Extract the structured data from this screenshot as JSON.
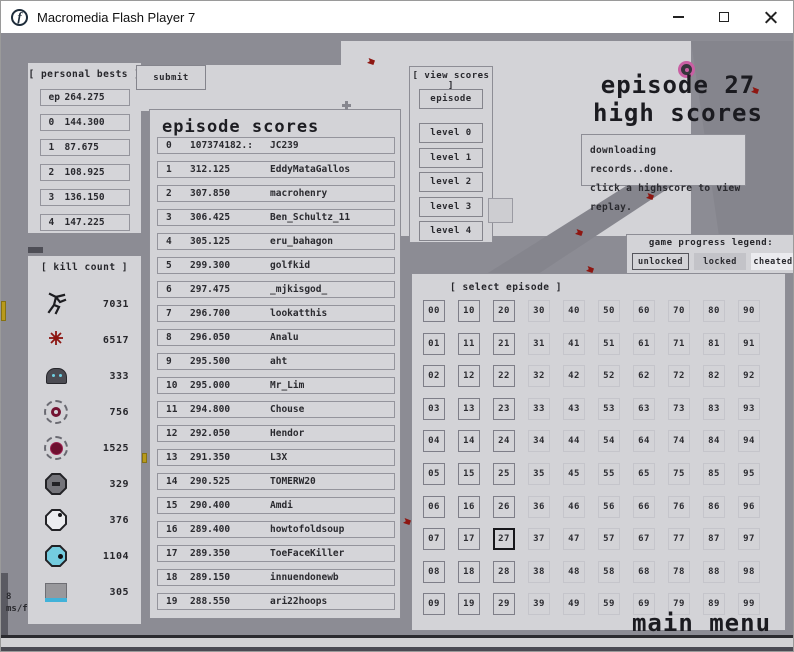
{
  "window": {
    "title": "Macromedia Flash Player 7",
    "controls": {
      "minimize": "minimize",
      "maximize": "maximize",
      "close": "close"
    }
  },
  "personal_bests": {
    "title": "[ personal bests ]",
    "submit_label": "submit",
    "rows": [
      {
        "label": "ep",
        "value": "264.275"
      },
      {
        "label": "0",
        "value": "144.300"
      },
      {
        "label": "1",
        "value": "87.675"
      },
      {
        "label": "2",
        "value": "108.925"
      },
      {
        "label": "3",
        "value": "136.150"
      },
      {
        "label": "4",
        "value": "147.225"
      }
    ]
  },
  "kill_count": {
    "title": "[ kill count ]",
    "rows": [
      {
        "icon": "ninja-icon",
        "count": "7031"
      },
      {
        "icon": "mine-icon",
        "count": "6517"
      },
      {
        "icon": "turret-icon",
        "count": "333"
      },
      {
        "icon": "ring-drone-icon",
        "count": "756"
      },
      {
        "icon": "orb-drone-icon",
        "count": "1525"
      },
      {
        "icon": "zap-drone-icon",
        "count": "329"
      },
      {
        "icon": "seeker-drone-icon",
        "count": "376"
      },
      {
        "icon": "chaingun-drone-icon",
        "count": "1104"
      },
      {
        "icon": "floorguard-icon",
        "count": "305"
      }
    ]
  },
  "episode_scores": {
    "title": "episode scores",
    "rows": [
      {
        "rank": "0",
        "score": "107374182.:",
        "name": "JC239"
      },
      {
        "rank": "1",
        "score": "312.125",
        "name": "EddyMataGallos"
      },
      {
        "rank": "2",
        "score": "307.850",
        "name": "macrohenry"
      },
      {
        "rank": "3",
        "score": "306.425",
        "name": "Ben_Schultz_11"
      },
      {
        "rank": "4",
        "score": "305.125",
        "name": "eru_bahagon"
      },
      {
        "rank": "5",
        "score": "299.300",
        "name": "golfkid"
      },
      {
        "rank": "6",
        "score": "297.475",
        "name": "_mjkisgod_"
      },
      {
        "rank": "7",
        "score": "296.700",
        "name": "lookatthis"
      },
      {
        "rank": "8",
        "score": "296.050",
        "name": "Analu"
      },
      {
        "rank": "9",
        "score": "295.500",
        "name": "aht"
      },
      {
        "rank": "10",
        "score": "295.000",
        "name": "Mr_Lim"
      },
      {
        "rank": "11",
        "score": "294.800",
        "name": "Chouse"
      },
      {
        "rank": "12",
        "score": "292.050",
        "name": "Hendor"
      },
      {
        "rank": "13",
        "score": "291.350",
        "name": "L3X"
      },
      {
        "rank": "14",
        "score": "290.525",
        "name": "TOMERW20"
      },
      {
        "rank": "15",
        "score": "290.400",
        "name": "Amdi"
      },
      {
        "rank": "16",
        "score": "289.400",
        "name": "howtofoldsoup"
      },
      {
        "rank": "17",
        "score": "289.350",
        "name": "ToeFaceKiller"
      },
      {
        "rank": "18",
        "score": "289.150",
        "name": "innuendonewb"
      },
      {
        "rank": "19",
        "score": "288.550",
        "name": "ari22hoops"
      }
    ]
  },
  "view_scores": {
    "title": "[ view scores ]",
    "episode_label": "episode",
    "level_labels": [
      "level 0",
      "level 1",
      "level 2",
      "level 3",
      "level 4"
    ]
  },
  "heading": {
    "line1": "episode 27",
    "line2": "high scores"
  },
  "message": {
    "line1": "downloading records..done.",
    "line2": "click a highscore to view replay."
  },
  "legend": {
    "title": "game progress legend:",
    "items": [
      {
        "label": "unlocked",
        "state": "unlocked"
      },
      {
        "label": "locked",
        "state": "locked"
      },
      {
        "label": "cheated",
        "state": "cheated"
      }
    ]
  },
  "select_episode": {
    "title": "[ select episode ]",
    "selected": "27",
    "unlocked_columns": 3,
    "rows": [
      [
        "00",
        "10",
        "20",
        "30",
        "40",
        "50",
        "60",
        "70",
        "80",
        "90"
      ],
      [
        "01",
        "11",
        "21",
        "31",
        "41",
        "51",
        "61",
        "71",
        "81",
        "91"
      ],
      [
        "02",
        "12",
        "22",
        "32",
        "42",
        "52",
        "62",
        "72",
        "82",
        "92"
      ],
      [
        "03",
        "13",
        "23",
        "33",
        "43",
        "53",
        "63",
        "73",
        "83",
        "93"
      ],
      [
        "04",
        "14",
        "24",
        "34",
        "44",
        "54",
        "64",
        "74",
        "84",
        "94"
      ],
      [
        "05",
        "15",
        "25",
        "35",
        "45",
        "55",
        "65",
        "75",
        "85",
        "95"
      ],
      [
        "06",
        "16",
        "26",
        "36",
        "46",
        "56",
        "66",
        "76",
        "86",
        "96"
      ],
      [
        "07",
        "17",
        "27",
        "37",
        "47",
        "57",
        "67",
        "77",
        "87",
        "97"
      ],
      [
        "08",
        "18",
        "28",
        "38",
        "48",
        "58",
        "68",
        "78",
        "88",
        "98"
      ],
      [
        "09",
        "19",
        "29",
        "39",
        "49",
        "59",
        "69",
        "79",
        "89",
        "99"
      ]
    ]
  },
  "footer": {
    "main_menu_label": "main menu",
    "frame_time_value": "8",
    "frame_time_unit": "ms/f"
  },
  "decorations": {
    "markers": [
      "red-drone-marker",
      "mine-plus-marker",
      "gold-piece"
    ]
  },
  "colors": {
    "stage": "#8c8c94",
    "panel": "#d3d3d7",
    "ramp": "#85858d",
    "accent_cyan": "#74ccdf",
    "accent_red": "#8c1410",
    "accent_maroon": "#6e1030",
    "accent_pink": "#c95fa3",
    "gold": "#b89a1c"
  }
}
